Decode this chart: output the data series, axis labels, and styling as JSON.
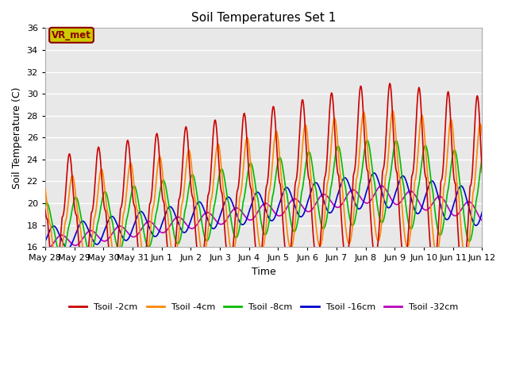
{
  "title": "Soil Temperatures Set 1",
  "xlabel": "Time",
  "ylabel": "Soil Temperature (C)",
  "ylim": [
    16,
    36
  ],
  "yticks": [
    16,
    18,
    20,
    22,
    24,
    26,
    28,
    30,
    32,
    34,
    36
  ],
  "bg_color": "#e8e8e8",
  "fig_color": "#ffffff",
  "annotation_text": "VR_met",
  "annotation_bg": "#cccc00",
  "annotation_border": "#8b0000",
  "legend_entries": [
    "Tsoil -2cm",
    "Tsoil -4cm",
    "Tsoil -8cm",
    "Tsoil -16cm",
    "Tsoil -32cm"
  ],
  "line_colors": [
    "#cc0000",
    "#ff8800",
    "#00bb00",
    "#0000cc",
    "#bb00bb"
  ],
  "line_widths": [
    1.2,
    1.2,
    1.2,
    1.2,
    1.2
  ],
  "n_days": 15,
  "points_per_day": 48,
  "grid_color": "#ffffff",
  "tick_label_size": 8,
  "tick_labels": [
    "May 28",
    "May 29",
    "May 30",
    "May 31",
    "Jun 1",
    "Jun 2",
    "Jun 3",
    "Jun 4",
    "Jun 5",
    "Jun 6",
    "Jun 7",
    "Jun 8",
    "Jun 9",
    "Jun 10",
    "Jun 11",
    "Jun 12"
  ]
}
